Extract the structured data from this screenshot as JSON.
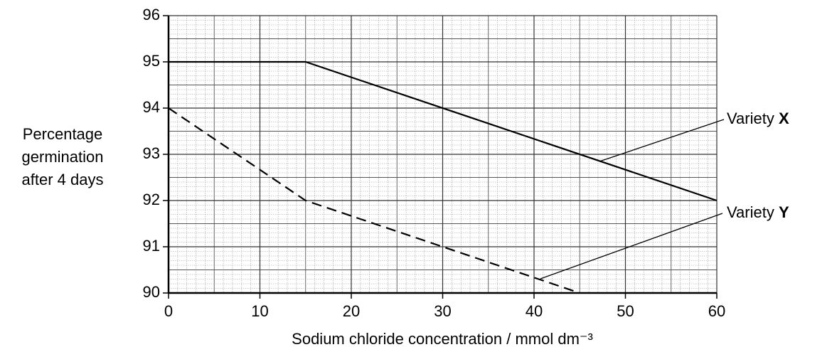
{
  "chart_data": {
    "type": "line",
    "y_label": [
      "Percentage",
      "germination",
      "after 4 days"
    ],
    "x_label": "Sodium chloride concentration / mmol dm⁻³",
    "series": [
      {
        "name": "Variety X",
        "color": "#000000",
        "dash": false,
        "x": [
          0,
          15,
          60
        ],
        "values": [
          95,
          95,
          92
        ]
      },
      {
        "name": "Variety Y",
        "color": "#000000",
        "dash": true,
        "x": [
          0,
          15,
          45
        ],
        "values": [
          94,
          92,
          90
        ]
      }
    ],
    "xlim": [
      0,
      60
    ],
    "xticks": [
      0,
      10,
      20,
      30,
      40,
      50,
      60
    ],
    "ylim": [
      90,
      96
    ],
    "yticks": [
      90,
      91,
      92,
      93,
      94,
      95,
      96
    ],
    "grid": true,
    "minor_grid": 10
  }
}
